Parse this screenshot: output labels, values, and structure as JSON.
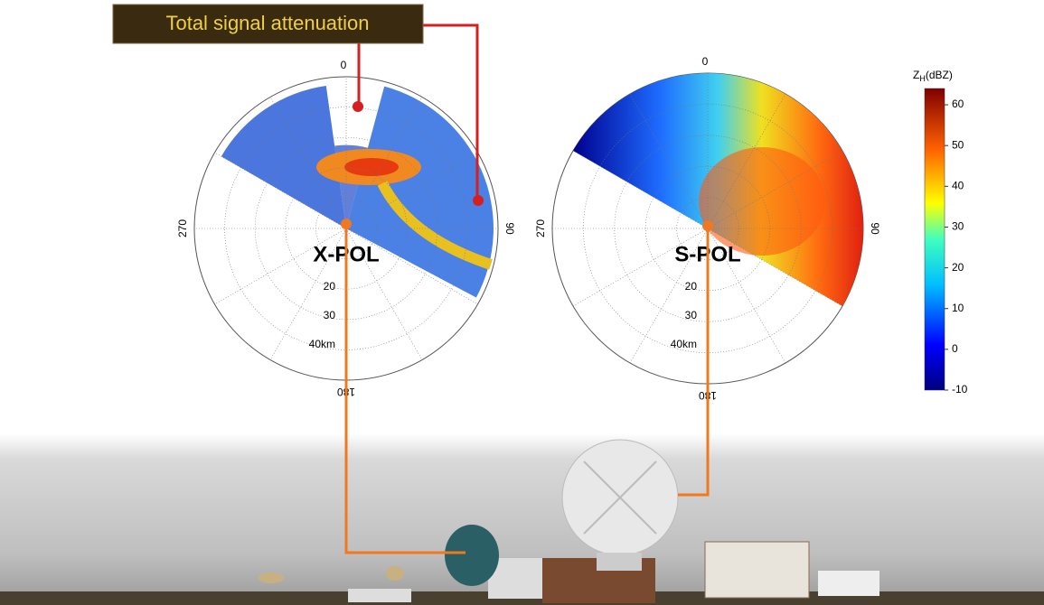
{
  "callout": {
    "label": "Total signal attenuation"
  },
  "radars": [
    {
      "name": "X-POL",
      "azimuth_labels": [
        "0",
        "90",
        "180",
        "270"
      ],
      "range_labels": [
        "20",
        "30",
        "40km"
      ]
    },
    {
      "name": "S-POL",
      "azimuth_labels": [
        "0",
        "90",
        "180",
        "270"
      ],
      "range_labels": [
        "20",
        "30",
        "40km"
      ]
    }
  ],
  "colorbar": {
    "label": "Z",
    "subscript": "H",
    "unit": "(dBZ)",
    "range": [
      -10,
      64
    ],
    "ticks": [
      60,
      50,
      40,
      30,
      20,
      10,
      0,
      -10
    ]
  }
}
